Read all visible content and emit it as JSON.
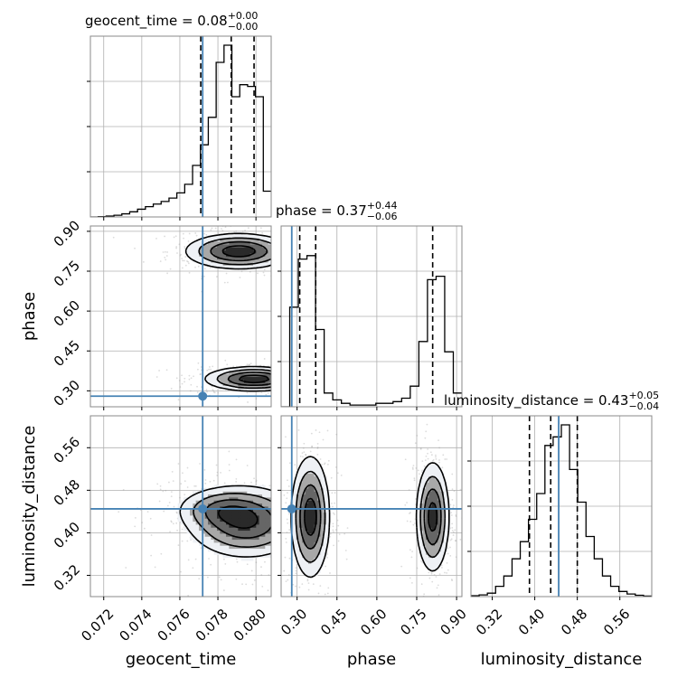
{
  "colors": {
    "truth": "#4682b4",
    "hist": "#000000",
    "grid": "#b0b0b0",
    "scatter": "#9a9a9a"
  },
  "chart_data": {
    "type": "corner",
    "parameters": [
      {
        "name": "geocent_time",
        "title_main": "geocent_time = 0.08",
        "title_plus": "+0.00",
        "title_minus": "−0.00",
        "range": [
          0.0713,
          0.0808
        ],
        "ticks": [
          0.072,
          0.074,
          0.076,
          0.078,
          0.08
        ],
        "tick_labels": [
          "0.072",
          "0.074",
          "0.076",
          "0.078",
          "0.080"
        ],
        "truth": 0.0772,
        "quantiles": [
          0.0771,
          0.0787,
          0.0799
        ]
      },
      {
        "name": "phase",
        "title_main": "phase = 0.37",
        "title_plus": "+0.44",
        "title_minus": "−0.06",
        "range": [
          0.24,
          0.92
        ],
        "ticks": [
          0.3,
          0.45,
          0.6,
          0.75,
          0.9
        ],
        "tick_labels": [
          "0.30",
          "0.45",
          "0.60",
          "0.75",
          "0.90"
        ],
        "truth": 0.28,
        "quantiles": [
          0.31,
          0.37,
          0.81
        ]
      },
      {
        "name": "luminosity_distance",
        "title_main": "luminosity_distance = 0.43",
        "title_plus": "+0.05",
        "title_minus": "−0.04",
        "range": [
          0.28,
          0.62
        ],
        "ticks": [
          0.32,
          0.4,
          0.48,
          0.56
        ],
        "tick_labels": [
          "0.32",
          "0.40",
          "0.48",
          "0.56"
        ],
        "truth": 0.445,
        "quantiles": [
          0.39,
          0.43,
          0.48
        ]
      }
    ],
    "histograms": [
      {
        "param": "geocent_time",
        "values": [
          0.0,
          0.002,
          0.005,
          0.01,
          0.018,
          0.03,
          0.045,
          0.06,
          0.075,
          0.09,
          0.11,
          0.14,
          0.19,
          0.3,
          0.42,
          0.58,
          0.9,
          1.0,
          0.7,
          0.77,
          0.76,
          0.7,
          0.15
        ]
      },
      {
        "param": "phase",
        "values": [
          0.0,
          0.58,
          0.86,
          0.88,
          0.45,
          0.08,
          0.04,
          0.02,
          0.01,
          0.01,
          0.01,
          0.02,
          0.02,
          0.03,
          0.05,
          0.12,
          0.38,
          0.74,
          0.76,
          0.32,
          0.08
        ]
      },
      {
        "param": "luminosity_distance",
        "values": [
          0.005,
          0.01,
          0.02,
          0.06,
          0.12,
          0.22,
          0.32,
          0.45,
          0.6,
          0.88,
          0.93,
          1.0,
          0.74,
          0.55,
          0.35,
          0.22,
          0.12,
          0.06,
          0.03,
          0.015,
          0.008,
          0.003
        ]
      }
    ],
    "contours_2d": [
      {
        "x": "geocent_time",
        "y": "phase",
        "modes": [
          {
            "cx": 0.0791,
            "cy": 0.825,
            "sx": 0.00135,
            "sy": 0.032,
            "w": 1.0
          },
          {
            "cx": 0.0799,
            "cy": 0.345,
            "sx": 0.00125,
            "sy": 0.022,
            "w": 1.0
          }
        ],
        "levels": [
          0.82,
          0.55,
          0.3,
          0.12
        ]
      },
      {
        "x": "geocent_time",
        "y": "luminosity_distance",
        "modes": [
          {
            "cx": 0.0795,
            "cy": 0.42,
            "sx": 0.0016,
            "sy": 0.035,
            "w": 1.0
          },
          {
            "cx": 0.0781,
            "cy": 0.445,
            "sx": 0.0012,
            "sy": 0.02,
            "w": 0.45
          }
        ],
        "levels": [
          0.85,
          0.6,
          0.35,
          0.15
        ]
      },
      {
        "x": "phase",
        "y": "luminosity_distance",
        "modes": [
          {
            "cx": 0.35,
            "cy": 0.43,
            "sx": 0.035,
            "sy": 0.055,
            "w": 1.0
          },
          {
            "cx": 0.81,
            "cy": 0.43,
            "sx": 0.03,
            "sy": 0.05,
            "w": 0.95
          }
        ],
        "levels": [
          0.82,
          0.55,
          0.3,
          0.12
        ]
      }
    ],
    "grid": true,
    "legend": "none"
  }
}
